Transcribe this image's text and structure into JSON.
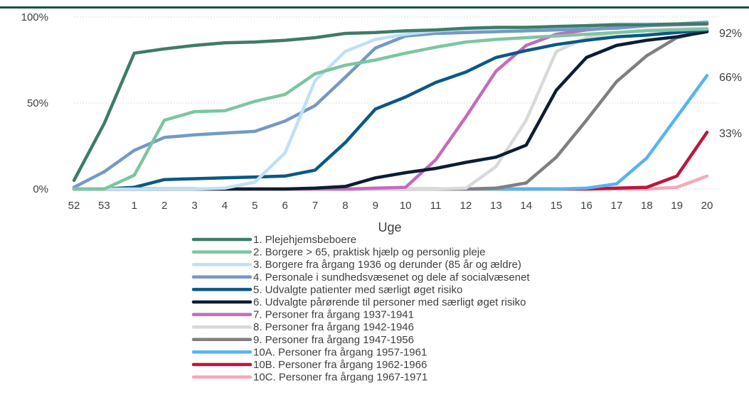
{
  "chart_data": {
    "type": "line",
    "xlabel": "Uge",
    "ylabel": "",
    "ylim": [
      0,
      100
    ],
    "y_ticks": [
      0,
      50,
      100
    ],
    "y_tick_format": "{v}%",
    "categories": [
      "52",
      "53",
      "1",
      "2",
      "3",
      "4",
      "5",
      "6",
      "7",
      "8",
      "9",
      "10",
      "11",
      "12",
      "13",
      "14",
      "15",
      "16",
      "17",
      "18",
      "19",
      "20"
    ],
    "legend_position": "bottom",
    "end_labels": [
      "92%",
      "66%",
      "33%"
    ],
    "grid": true,
    "series": [
      {
        "name": "1. Plejehjemsbeboere",
        "color": "#3e7c67",
        "values": [
          5,
          38,
          79,
          81.5,
          83.5,
          85,
          85.5,
          86.5,
          88,
          90.5,
          91,
          92,
          92.5,
          93.5,
          94,
          94,
          94.5,
          95,
          95.5,
          95.5,
          96,
          96
        ]
      },
      {
        "name": "2. Borgere > 65, praktisk hjælp og personlig pleje",
        "color": "#7cc6a0",
        "values": [
          0,
          0,
          8,
          40,
          45,
          45.5,
          51,
          55,
          67,
          72,
          75,
          79,
          82.5,
          85.5,
          87,
          88,
          89,
          90,
          91,
          92,
          92.5,
          93
        ]
      },
      {
        "name": "3. Borgere fra årgang 1936 og derunder (85 år og ældre)",
        "color": "#bfe0f5",
        "values": [
          0,
          0,
          0,
          0,
          0,
          0.5,
          4,
          21,
          63,
          80,
          87,
          90,
          92,
          93,
          93.5,
          94,
          94.5,
          95,
          96,
          96,
          96,
          96
        ]
      },
      {
        "name": "4. Personale i sundhedsvæsenet og dele af socialvæsenet",
        "color": "#7399c6",
        "values": [
          1,
          10,
          22.5,
          30,
          31.5,
          32.5,
          33.5,
          39.5,
          48.5,
          65,
          82,
          89,
          90.5,
          91,
          91.5,
          92,
          92.5,
          93,
          93.5,
          95,
          96,
          97
        ]
      },
      {
        "name": "5. Udvalgte patienter med særligt øget risiko",
        "color": "#0a5887",
        "values": [
          0,
          0,
          1,
          5.5,
          6,
          6.5,
          7,
          7.5,
          11,
          27,
          46.5,
          53.5,
          62,
          68,
          76.5,
          80.5,
          84,
          86.5,
          88.5,
          89.5,
          91,
          92.5
        ]
      },
      {
        "name": "6. Udvalgte pårørende til personer med særligt øget risiko",
        "color": "#0b1e33",
        "values": [
          0,
          0,
          0,
          0,
          0,
          0,
          0,
          0,
          0.5,
          1.5,
          6.5,
          9.5,
          12,
          15.5,
          18.5,
          25.5,
          57.5,
          76.5,
          83.5,
          86.5,
          88.5,
          91.5
        ]
      },
      {
        "name": "7. Personer fra årgang 1937-1941",
        "color": "#c46bbd",
        "values": [
          0,
          0,
          0,
          0,
          0,
          0,
          0,
          0,
          0,
          0,
          0.5,
          1,
          17,
          42,
          68.5,
          83.5,
          90,
          92.5,
          94,
          95,
          95.5,
          96
        ]
      },
      {
        "name": "8. Personer fra årgang 1942-1946",
        "color": "#d9d9d9",
        "values": [
          0,
          0,
          0,
          0,
          0,
          0,
          0,
          0,
          0,
          0,
          0,
          0,
          0,
          0.5,
          13,
          40,
          80,
          88,
          91,
          92.5,
          93,
          93.5
        ]
      },
      {
        "name": "9. Personer fra årgang 1947-1956",
        "color": "#7f7f7f",
        "values": [
          0,
          0,
          0,
          0,
          0,
          0,
          0,
          0,
          0,
          0,
          0,
          0,
          0,
          0,
          0.5,
          3.5,
          18.5,
          40,
          62.5,
          77.5,
          88,
          92
        ]
      },
      {
        "name": "10A. Personer fra årgang 1957-1961",
        "color": "#55b4f0",
        "values": [
          0,
          0,
          0,
          0,
          0,
          0,
          0,
          0,
          0,
          0,
          0,
          0,
          0,
          0,
          0,
          0,
          0,
          0.5,
          3,
          18,
          42,
          66
        ]
      },
      {
        "name": "10B. Personer fra årgang 1962-1966",
        "color": "#c0143c",
        "values": [
          0,
          0,
          0,
          0,
          0,
          0,
          0,
          0,
          0,
          0,
          0,
          0,
          0,
          0,
          0,
          0,
          0,
          0,
          0.5,
          1,
          7.5,
          33
        ]
      },
      {
        "name": "10C. Personer fra årgang 1967-1971",
        "color": "#f7a8b8",
        "values": [
          0,
          0,
          0,
          0,
          0,
          0,
          0,
          0,
          0,
          0,
          0,
          0,
          0,
          0,
          0,
          0,
          0,
          0,
          0,
          0,
          1,
          7.5
        ]
      }
    ]
  }
}
